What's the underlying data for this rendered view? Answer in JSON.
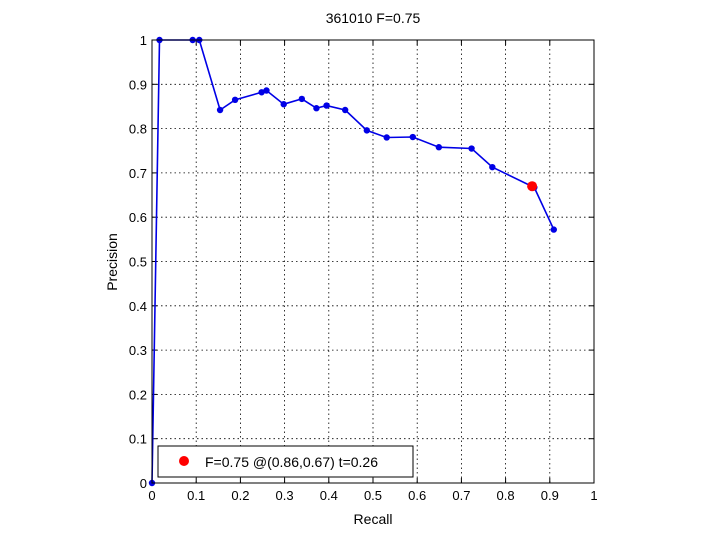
{
  "chart_data": {
    "type": "line",
    "title": "361010 F=0.75",
    "xlabel": "Recall",
    "ylabel": "Precision",
    "xlim": [
      0,
      1
    ],
    "ylim": [
      0,
      1
    ],
    "grid": true,
    "xticks": [
      "0",
      "0.1",
      "0.2",
      "0.3",
      "0.4",
      "0.5",
      "0.6",
      "0.7",
      "0.8",
      "0.9",
      "1"
    ],
    "yticks": [
      "0",
      "0.1",
      "0.2",
      "0.3",
      "0.4",
      "0.5",
      "0.6",
      "0.7",
      "0.8",
      "0.9",
      "1"
    ],
    "series": [
      {
        "color": "#0000e6",
        "points": [
          [
            0.0,
            0.0
          ],
          [
            0.017,
            1.0
          ],
          [
            0.092,
            1.0
          ],
          [
            0.107,
            1.0
          ],
          [
            0.154,
            0.842
          ],
          [
            0.188,
            0.865
          ],
          [
            0.248,
            0.882
          ],
          [
            0.259,
            0.886
          ],
          [
            0.298,
            0.855
          ],
          [
            0.339,
            0.867
          ],
          [
            0.372,
            0.846
          ],
          [
            0.395,
            0.852
          ],
          [
            0.437,
            0.842
          ],
          [
            0.486,
            0.796
          ],
          [
            0.531,
            0.78
          ],
          [
            0.59,
            0.781
          ],
          [
            0.649,
            0.758
          ],
          [
            0.723,
            0.755
          ],
          [
            0.77,
            0.713
          ],
          [
            0.865,
            0.667
          ],
          [
            0.909,
            0.572
          ]
        ]
      }
    ],
    "highlight": {
      "x": 0.86,
      "y": 0.67,
      "color": "#ff0000"
    },
    "legend": {
      "label": "F=0.75 @(0.86,0.67) t=0.26",
      "position": "bottom-left"
    }
  }
}
